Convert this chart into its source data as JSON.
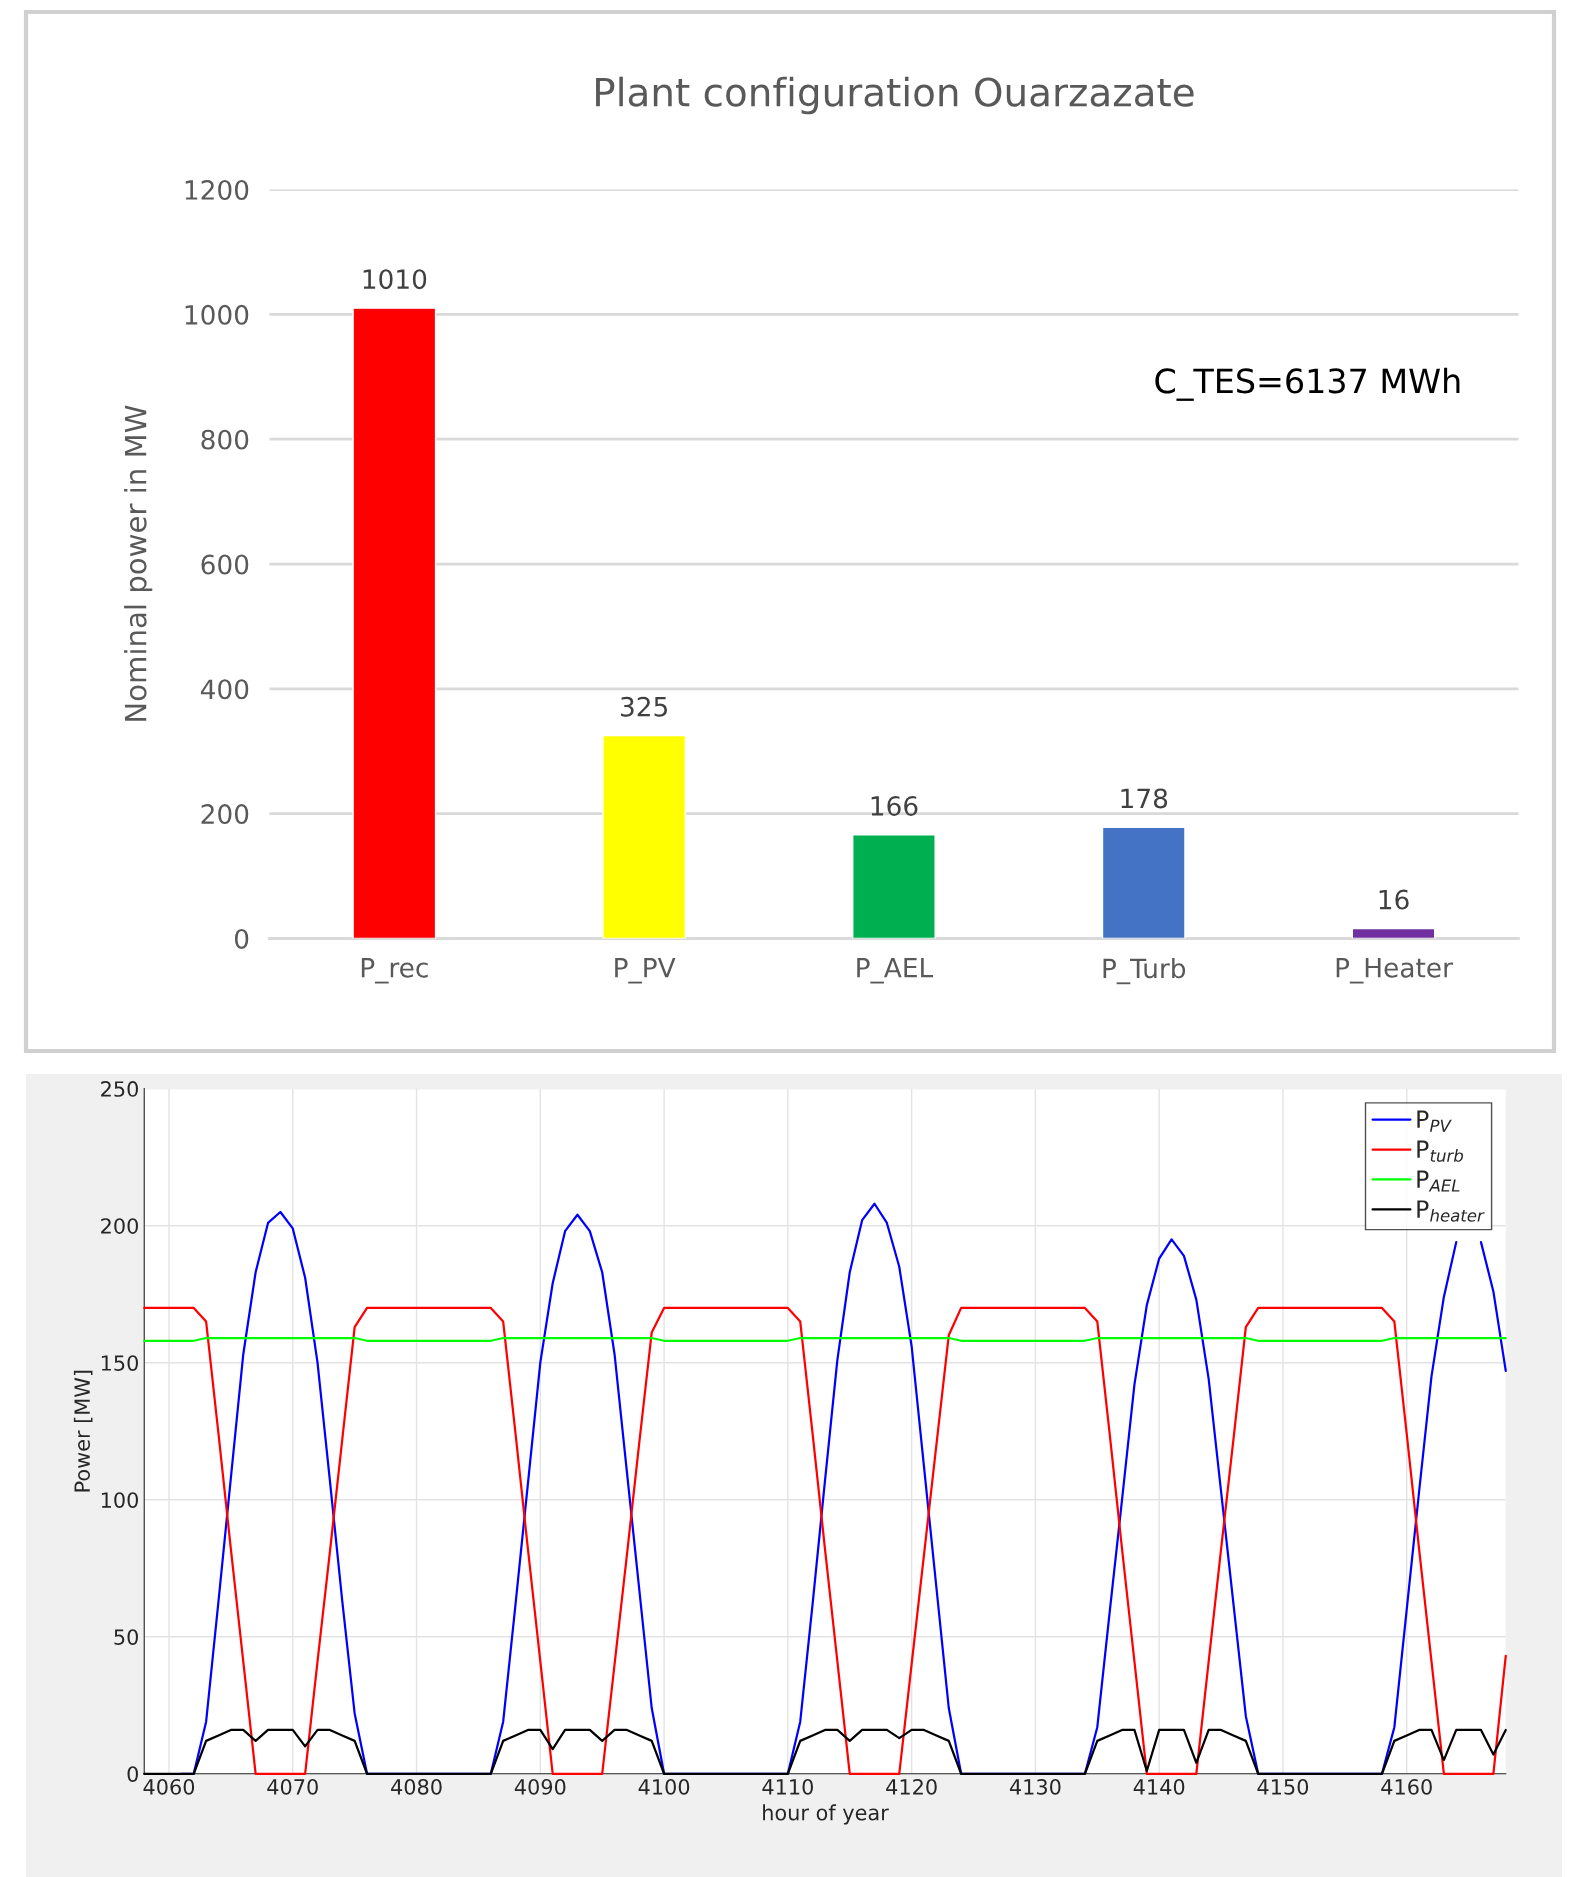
{
  "chart_data": [
    {
      "type": "bar",
      "title": "Plant configuration Ouarzazate",
      "ylabel": "Nominal power in MW",
      "categories": [
        "P_rec",
        "P_PV",
        "P_AEL",
        "P_Turb",
        "P_Heater"
      ],
      "values": [
        1010,
        325,
        166,
        178,
        16
      ],
      "colors": [
        "#ff0000",
        "#ffff00",
        "#00b050",
        "#4472c4",
        "#7030a0"
      ],
      "ylim": [
        0,
        1200
      ],
      "yticks": [
        0,
        200,
        400,
        600,
        800,
        1000,
        1200
      ],
      "grid": "y",
      "data_labels": true,
      "annotations": [
        "C_TES=6137 MWh"
      ]
    },
    {
      "type": "line",
      "xlabel": "hour of year",
      "ylabel": "Power [MW]",
      "xlim": [
        4058,
        4168
      ],
      "xticks": [
        4060,
        4070,
        4080,
        4090,
        4100,
        4110,
        4120,
        4130,
        4140,
        4150,
        4160
      ],
      "ylim": [
        0,
        250
      ],
      "yticks": [
        0,
        50,
        100,
        150,
        200,
        250
      ],
      "grid": true,
      "legend": "top right",
      "x": [
        4058,
        4059,
        4060,
        4061,
        4062,
        4063,
        4064,
        4065,
        4066,
        4067,
        4068,
        4069,
        4070,
        4071,
        4072,
        4073,
        4074,
        4075,
        4076,
        4077,
        4078,
        4079,
        4080,
        4081,
        4082,
        4083,
        4084,
        4085,
        4086,
        4087,
        4088,
        4089,
        4090,
        4091,
        4092,
        4093,
        4094,
        4095,
        4096,
        4097,
        4098,
        4099,
        4100,
        4101,
        4102,
        4103,
        4104,
        4105,
        4106,
        4107,
        4108,
        4109,
        4110,
        4111,
        4112,
        4113,
        4114,
        4115,
        4116,
        4117,
        4118,
        4119,
        4120,
        4121,
        4122,
        4123,
        4124,
        4125,
        4126,
        4127,
        4128,
        4129,
        4130,
        4131,
        4132,
        4133,
        4134,
        4135,
        4136,
        4137,
        4138,
        4139,
        4140,
        4141,
        4142,
        4143,
        4144,
        4145,
        4146,
        4147,
        4148,
        4149,
        4150,
        4151,
        4152,
        4153,
        4154,
        4155,
        4156,
        4157,
        4158,
        4159,
        4160,
        4161,
        4162,
        4163,
        4164,
        4165,
        4166,
        4167,
        4168
      ],
      "series": [
        {
          "name": "P$_{PV}$",
          "color": "#0000ff",
          "values": [
            null,
            null,
            null,
            0,
            0,
            19,
            63,
            108,
            153,
            183,
            201,
            205,
            199,
            181,
            150,
            107,
            63,
            22,
            0,
            0,
            0,
            0,
            0,
            0,
            0,
            0,
            0,
            0,
            0,
            19,
            62,
            106,
            150,
            179,
            198,
            204,
            198,
            183,
            153,
            110,
            67,
            24,
            0,
            0,
            0,
            0,
            0,
            0,
            0,
            0,
            0,
            0,
            0,
            19,
            62,
            107,
            151,
            183,
            202,
            208,
            201,
            185,
            156,
            112,
            68,
            24,
            0,
            0,
            0,
            0,
            0,
            0,
            0,
            0,
            0,
            0,
            0,
            17,
            59,
            100,
            142,
            171,
            188,
            195,
            189,
            173,
            144,
            103,
            62,
            21,
            0,
            0,
            0,
            0,
            0,
            0,
            0,
            0,
            0,
            0,
            0,
            17,
            60,
            103,
            145,
            174,
            194,
            null,
            194,
            176,
            147
          ]
        },
        {
          "name": "P$_{turb}$",
          "color": "#ff0000",
          "values": [
            170,
            170,
            170,
            170,
            170,
            165,
            124,
            82,
            41,
            0,
            0,
            0,
            0,
            0,
            41,
            81,
            122,
            163,
            170,
            170,
            170,
            170,
            170,
            170,
            170,
            170,
            170,
            170,
            170,
            165,
            124,
            82,
            41,
            0,
            0,
            0,
            0,
            0,
            40,
            80,
            121,
            161,
            170,
            170,
            170,
            170,
            170,
            170,
            170,
            170,
            170,
            170,
            170,
            165,
            124,
            82,
            41,
            0,
            0,
            0,
            0,
            0,
            40,
            80,
            120,
            160,
            170,
            170,
            170,
            170,
            170,
            170,
            170,
            170,
            170,
            170,
            170,
            165,
            124,
            82,
            41,
            0,
            0,
            0,
            0,
            0,
            41,
            82,
            122,
            163,
            170,
            170,
            170,
            170,
            170,
            170,
            170,
            170,
            170,
            170,
            170,
            165,
            124,
            82,
            41,
            0,
            0,
            0,
            0,
            0,
            43
          ]
        },
        {
          "name": "P$_{AEL}$",
          "color": "#00ff00",
          "values": [
            158,
            158,
            158,
            158,
            158,
            159,
            159,
            159,
            159,
            159,
            159,
            159,
            159,
            159,
            159,
            159,
            159,
            159,
            158,
            158,
            158,
            158,
            158,
            158,
            158,
            158,
            158,
            158,
            158,
            159,
            159,
            159,
            159,
            159,
            159,
            159,
            159,
            159,
            159,
            159,
            159,
            159,
            158,
            158,
            158,
            158,
            158,
            158,
            158,
            158,
            158,
            158,
            158,
            159,
            159,
            159,
            159,
            159,
            159,
            159,
            159,
            159,
            159,
            159,
            159,
            159,
            158,
            158,
            158,
            158,
            158,
            158,
            158,
            158,
            158,
            158,
            158,
            159,
            159,
            159,
            159,
            159,
            159,
            159,
            159,
            159,
            159,
            159,
            159,
            159,
            158,
            158,
            158,
            158,
            158,
            158,
            158,
            158,
            158,
            158,
            158,
            159,
            159,
            159,
            159,
            159,
            159,
            159,
            159,
            159,
            159
          ]
        },
        {
          "name": "P$_{heater}$",
          "color": "#000000",
          "values": [
            0,
            0,
            0,
            0,
            0,
            12,
            14,
            16,
            16,
            12,
            16,
            16,
            16,
            10,
            16,
            16,
            14,
            12,
            0,
            0,
            0,
            0,
            0,
            0,
            0,
            0,
            0,
            0,
            0,
            12,
            14,
            16,
            16,
            9,
            16,
            16,
            16,
            12,
            16,
            16,
            14,
            12,
            0,
            0,
            0,
            0,
            0,
            0,
            0,
            0,
            0,
            0,
            0,
            12,
            14,
            16,
            16,
            12,
            16,
            16,
            16,
            13,
            16,
            16,
            14,
            12,
            0,
            0,
            0,
            0,
            0,
            0,
            0,
            0,
            0,
            0,
            0,
            12,
            14,
            16,
            16,
            1,
            16,
            16,
            16,
            4,
            16,
            16,
            14,
            12,
            0,
            0,
            0,
            0,
            0,
            0,
            0,
            0,
            0,
            0,
            0,
            12,
            14,
            16,
            16,
            5,
            16,
            16,
            16,
            7,
            16
          ]
        }
      ]
    }
  ]
}
